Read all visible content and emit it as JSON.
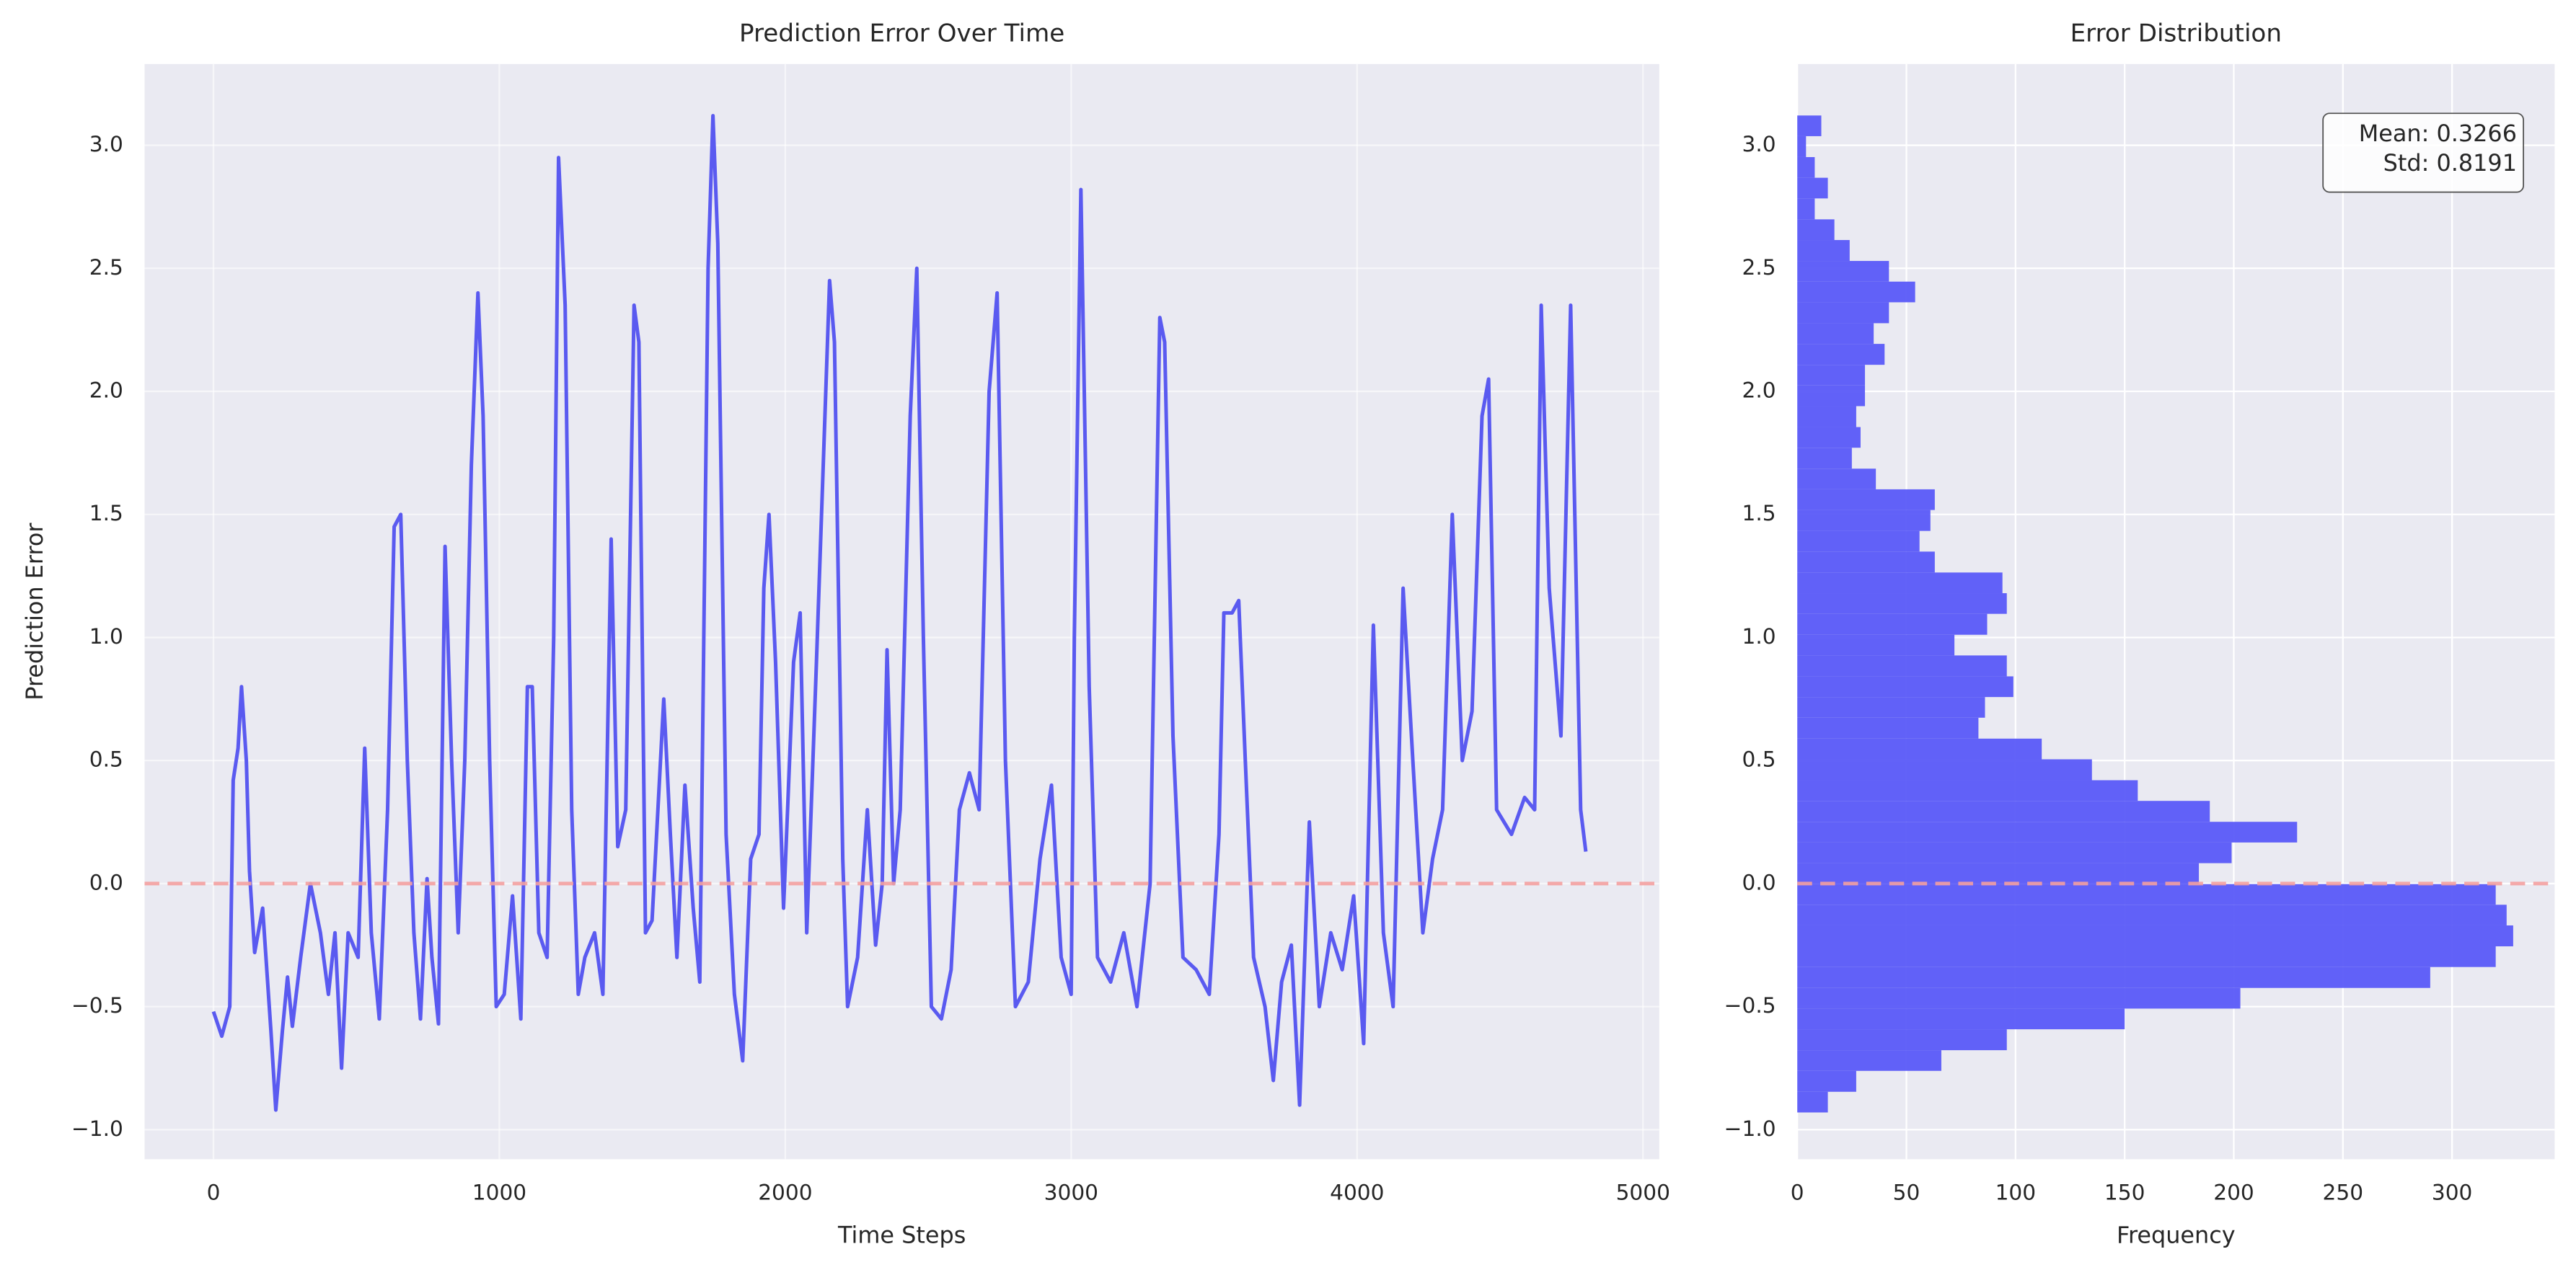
{
  "chart_data": [
    {
      "type": "line",
      "title": "Prediction Error Over Time",
      "x_label": "Time Steps",
      "y_label": "Prediction Error",
      "color": "#5a5af0",
      "x": [
        0,
        29,
        57,
        69,
        86,
        98,
        115,
        126,
        144,
        172,
        201,
        218,
        241,
        259,
        276,
        305,
        339,
        374,
        402,
        425,
        448,
        471,
        506,
        529,
        552,
        580,
        609,
        632,
        655,
        678,
        701,
        724,
        747,
        764,
        787,
        810,
        833,
        856,
        879,
        902,
        925,
        943,
        966,
        989,
        1017,
        1046,
        1075,
        1098,
        1115,
        1138,
        1167,
        1190,
        1207,
        1230,
        1253,
        1276,
        1299,
        1333,
        1362,
        1391,
        1414,
        1442,
        1471,
        1488,
        1511,
        1534,
        1575,
        1598,
        1621,
        1649,
        1678,
        1701,
        1730,
        1747,
        1764,
        1793,
        1822,
        1851,
        1879,
        1908,
        1925,
        1943,
        1966,
        1994,
        2029,
        2052,
        2075,
        2109,
        2155,
        2172,
        2201,
        2218,
        2253,
        2287,
        2316,
        2339,
        2356,
        2379,
        2402,
        2437,
        2460,
        2483,
        2511,
        2546,
        2580,
        2609,
        2644,
        2678,
        2713,
        2741,
        2770,
        2805,
        2850,
        2891,
        2931,
        2965,
        3000,
        3011,
        3034,
        3063,
        3092,
        3138,
        3184,
        3230,
        3276,
        3310,
        3327,
        3356,
        3391,
        3437,
        3483,
        3517,
        3534,
        3563,
        3586,
        3609,
        3638,
        3678,
        3707,
        3736,
        3770,
        3799,
        3833,
        3868,
        3908,
        3948,
        3988,
        4023,
        4057,
        4092,
        4126,
        4161,
        4195,
        4230,
        4264,
        4299,
        4333,
        4368,
        4402,
        4437,
        4460,
        4488,
        4540,
        4586,
        4621,
        4644,
        4672,
        4713,
        4747,
        4782,
        4800
      ],
      "values": [
        -0.52,
        -0.62,
        -0.5,
        0.42,
        0.55,
        0.8,
        0.5,
        0.05,
        -0.28,
        -0.1,
        -0.6,
        -0.92,
        -0.6,
        -0.38,
        -0.58,
        -0.3,
        0.0,
        -0.2,
        -0.45,
        -0.2,
        -0.75,
        -0.2,
        -0.3,
        0.55,
        -0.2,
        -0.55,
        0.3,
        1.45,
        1.5,
        0.5,
        -0.2,
        -0.55,
        0.02,
        -0.3,
        -0.57,
        1.37,
        0.5,
        -0.2,
        0.5,
        1.7,
        2.4,
        1.9,
        0.5,
        -0.5,
        -0.45,
        -0.05,
        -0.55,
        0.8,
        0.8,
        -0.2,
        -0.3,
        1.0,
        2.95,
        2.35,
        0.3,
        -0.45,
        -0.3,
        -0.2,
        -0.45,
        1.4,
        0.15,
        0.3,
        2.35,
        2.2,
        -0.2,
        -0.15,
        0.75,
        0.2,
        -0.3,
        0.4,
        -0.1,
        -0.4,
        2.5,
        3.12,
        2.6,
        0.2,
        -0.45,
        -0.72,
        0.1,
        0.2,
        1.2,
        1.5,
        0.9,
        -0.1,
        0.9,
        1.1,
        -0.2,
        0.9,
        2.45,
        2.2,
        0.1,
        -0.5,
        -0.3,
        0.3,
        -0.25,
        0.0,
        0.95,
        0.0,
        0.3,
        1.9,
        2.5,
        1.0,
        -0.5,
        -0.55,
        -0.35,
        0.3,
        0.45,
        0.3,
        2.0,
        2.4,
        0.5,
        -0.5,
        -0.4,
        0.1,
        0.4,
        -0.3,
        -0.45,
        1.0,
        2.82,
        0.8,
        -0.3,
        -0.4,
        -0.2,
        -0.5,
        0.0,
        2.3,
        2.2,
        0.6,
        -0.3,
        -0.35,
        -0.45,
        0.2,
        1.1,
        1.1,
        1.15,
        0.5,
        -0.3,
        -0.5,
        -0.8,
        -0.4,
        -0.25,
        -0.9,
        0.25,
        -0.5,
        -0.2,
        -0.35,
        -0.05,
        -0.65,
        1.05,
        -0.2,
        -0.5,
        1.2,
        0.5,
        -0.2,
        0.1,
        0.3,
        1.5,
        0.5,
        0.7,
        1.9,
        2.05,
        0.3,
        0.2,
        0.35,
        0.3,
        2.35,
        1.2,
        0.6,
        2.35,
        0.3,
        0.13
      ],
      "xlim": [
        -241,
        5057
      ],
      "xticks": [
        0,
        1000,
        2000,
        3000,
        4000,
        5000
      ],
      "ylim": [
        -1.12,
        3.33
      ],
      "yticks": [
        {
          "value": -1.0,
          "label": "−1.0"
        },
        {
          "value": -0.5,
          "label": "−0.5"
        },
        {
          "value": 0,
          "label": "0.0"
        },
        {
          "value": 0.5,
          "label": "0.5"
        },
        {
          "value": 1.0,
          "label": "1.0"
        },
        {
          "value": 1.5,
          "label": "1.5"
        },
        {
          "value": 2.0,
          "label": "2.0"
        },
        {
          "value": 2.5,
          "label": "2.5"
        },
        {
          "value": 3.0,
          "label": "3.0"
        }
      ],
      "reference_line": 0,
      "reference_color": "#f4a0a0",
      "grid": true
    },
    {
      "type": "histogram",
      "title": "Error Distribution",
      "x_label": "Frequency",
      "color": "#5a5af8",
      "bins": [
        -0.93,
        -0.846,
        -0.761,
        -0.677,
        -0.592,
        -0.508,
        -0.424,
        -0.339,
        -0.255,
        -0.17,
        -0.086,
        -0.002,
        0.083,
        0.167,
        0.251,
        0.336,
        0.42,
        0.505,
        0.589,
        0.674,
        0.758,
        0.842,
        0.927,
        1.011,
        1.096,
        1.18,
        1.264,
        1.349,
        1.433,
        1.518,
        1.602,
        1.686,
        1.771,
        1.855,
        1.94,
        2.024,
        2.108,
        2.193,
        2.277,
        2.362,
        2.446,
        2.53,
        2.615,
        2.699,
        2.784,
        2.868,
        2.952,
        3.037,
        3.121
      ],
      "values": [
        14,
        27,
        66,
        96,
        150,
        203,
        290,
        320,
        328,
        325,
        320,
        184,
        199,
        229,
        189,
        156,
        135,
        112,
        83,
        86,
        99,
        96,
        72,
        87,
        96,
        94,
        63,
        56,
        61,
        63,
        36,
        25,
        29,
        27,
        31,
        31,
        40,
        35,
        42,
        54,
        42,
        24,
        17,
        8,
        14,
        8,
        4,
        11
      ],
      "xlim": [
        0,
        347
      ],
      "xticks": [
        0,
        50,
        100,
        150,
        200,
        250,
        300
      ],
      "ylim": [
        -1.12,
        3.33
      ],
      "yticks": [
        {
          "value": -1.0,
          "label": "−1.0"
        },
        {
          "value": -0.5,
          "label": "−0.5"
        },
        {
          "value": 0,
          "label": "0.0"
        },
        {
          "value": 0.5,
          "label": "0.5"
        },
        {
          "value": 1.0,
          "label": "1.0"
        },
        {
          "value": 1.5,
          "label": "1.5"
        },
        {
          "value": 2.0,
          "label": "2.0"
        },
        {
          "value": 2.5,
          "label": "2.5"
        },
        {
          "value": 3.0,
          "label": "3.0"
        }
      ],
      "annotations": [
        "Mean: 0.3266",
        "Std: 0.8191"
      ],
      "reference_line": 0,
      "reference_color": "#f4a0a0",
      "grid": true
    }
  ]
}
